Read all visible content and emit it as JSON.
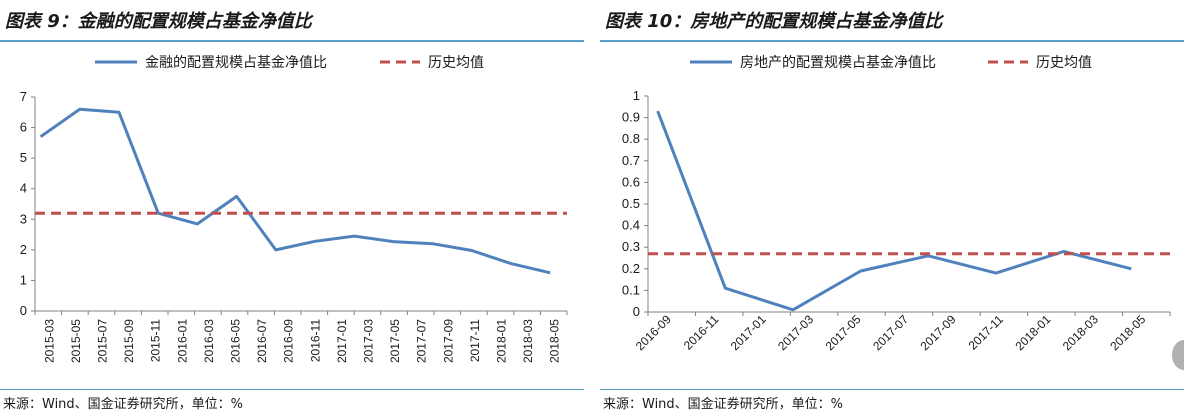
{
  "panels": [
    {
      "title": "图表 9：金融的配置规模占基金净值比",
      "source": "来源：Wind、国金证券研究所，单位：%"
    },
    {
      "title": "图表 10：房地产的配置规模占基金净值比",
      "source": "来源：Wind、国金证券研究所，单位：%"
    }
  ],
  "chart_data": [
    {
      "type": "line",
      "title": "图表 9：金融的配置规模占基金净值比",
      "xlabel": "",
      "ylabel": "",
      "categories": [
        "2015-03",
        "2015-05",
        "2015-07",
        "2015-09",
        "2015-11",
        "2016-01",
        "2016-03",
        "2016-05",
        "2016-07",
        "2016-09",
        "2016-11",
        "2017-01",
        "2017-03",
        "2017-05",
        "2017-07",
        "2017-09",
        "2017-11",
        "2018-01",
        "2018-03",
        "2018-05"
      ],
      "x_index": [
        0,
        2,
        3,
        5,
        6,
        7,
        8,
        9,
        10,
        11,
        12,
        13,
        14,
        15
      ],
      "series": [
        {
          "name": "金融的配置规模占基金净值比",
          "color": "#4f81bd",
          "style": "solid",
          "points": [
            {
              "x": 0.2,
              "y": 5.7
            },
            {
              "x": 1.6,
              "y": 6.6
            },
            {
              "x": 3.0,
              "y": 6.5
            },
            {
              "x": 4.4,
              "y": 3.2
            },
            {
              "x": 5.8,
              "y": 2.85
            },
            {
              "x": 7.2,
              "y": 3.75
            },
            {
              "x": 8.6,
              "y": 2.0
            },
            {
              "x": 10.0,
              "y": 2.28
            },
            {
              "x": 11.4,
              "y": 2.45
            },
            {
              "x": 12.8,
              "y": 2.27
            },
            {
              "x": 14.2,
              "y": 2.2
            },
            {
              "x": 15.6,
              "y": 1.98
            },
            {
              "x": 17.0,
              "y": 1.55
            },
            {
              "x": 18.4,
              "y": 1.25
            }
          ]
        },
        {
          "name": "历史均值",
          "color": "#c0504d",
          "style": "dashed",
          "points": [
            {
              "x": 0.0,
              "y": 3.2
            },
            {
              "x": 19.0,
              "y": 3.2
            }
          ]
        }
      ],
      "ylim": [
        0,
        7
      ],
      "yticks": [
        0,
        1,
        2,
        3,
        4,
        5,
        6,
        7
      ],
      "xlim": [
        0,
        19
      ],
      "legend": "top"
    },
    {
      "type": "line",
      "title": "图表 10：房地产的配置规模占基金净值比",
      "xlabel": "",
      "ylabel": "",
      "categories": [
        "2016-09",
        "2016-11",
        "2017-01",
        "2017-03",
        "2017-05",
        "2017-07",
        "2017-09",
        "2017-11",
        "2018-01",
        "2018-03",
        "2018-05"
      ],
      "series": [
        {
          "name": "房地产的配置规模占基金净值比",
          "color": "#4f81bd",
          "style": "solid",
          "points": [
            {
              "x": 0.2,
              "y": 0.93
            },
            {
              "x": 1.6,
              "y": 0.11
            },
            {
              "x": 3.0,
              "y": 0.01
            },
            {
              "x": 4.4,
              "y": 0.19
            },
            {
              "x": 5.8,
              "y": 0.26
            },
            {
              "x": 7.2,
              "y": 0.18
            },
            {
              "x": 8.6,
              "y": 0.28
            },
            {
              "x": 10.0,
              "y": 0.2
            }
          ]
        },
        {
          "name": "历史均值",
          "color": "#c0504d",
          "style": "dashed",
          "points": [
            {
              "x": 0.0,
              "y": 0.27
            },
            {
              "x": 10.8,
              "y": 0.27
            }
          ]
        }
      ],
      "ylim": [
        0,
        1
      ],
      "yticks": [
        "0",
        "0.1",
        "0.2",
        "0.3",
        "0.4",
        "0.5",
        "0.6",
        "0.7",
        "0.8",
        "0.9",
        "1"
      ],
      "xlim": [
        0,
        10.8
      ],
      "legend": "top"
    }
  ]
}
